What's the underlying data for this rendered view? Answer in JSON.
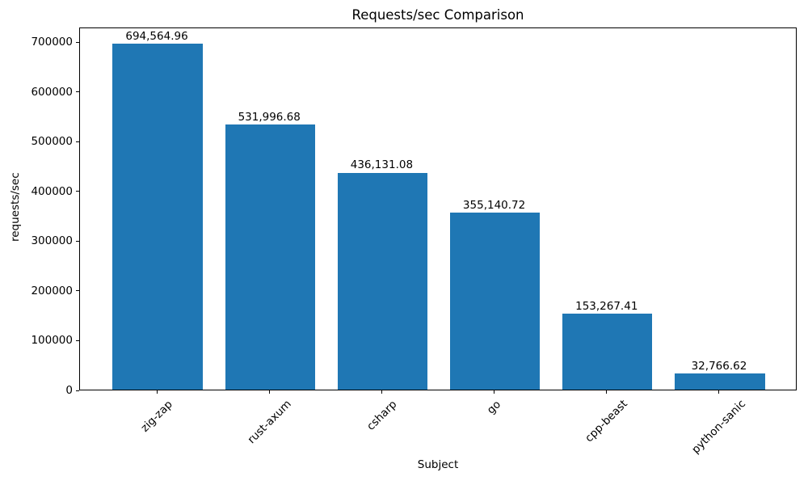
{
  "chart_data": {
    "type": "bar",
    "title": "Requests/sec Comparison",
    "xlabel": "Subject",
    "ylabel": "requests/sec",
    "categories": [
      "zig-zap",
      "rust-axum",
      "csharp",
      "go",
      "cpp-beast",
      "python-sanic"
    ],
    "values": [
      694564.96,
      531996.68,
      436131.08,
      355140.72,
      153267.41,
      32766.62
    ],
    "value_labels": [
      "694,564.96",
      "531,996.68",
      "436,131.08",
      "355,140.72",
      "153,267.41",
      "32,766.62"
    ],
    "yticks": [
      0,
      100000,
      200000,
      300000,
      400000,
      500000,
      600000,
      700000
    ],
    "ylim": [
      0,
      729293
    ],
    "bar_width_fraction": 0.8,
    "bar_color": "#1f77b4",
    "axis_color": "#000000",
    "text_color": "#000000",
    "background_color": "#ffffff",
    "grid": false,
    "legend_position": "none",
    "xtick_rotation_deg": 45
  }
}
